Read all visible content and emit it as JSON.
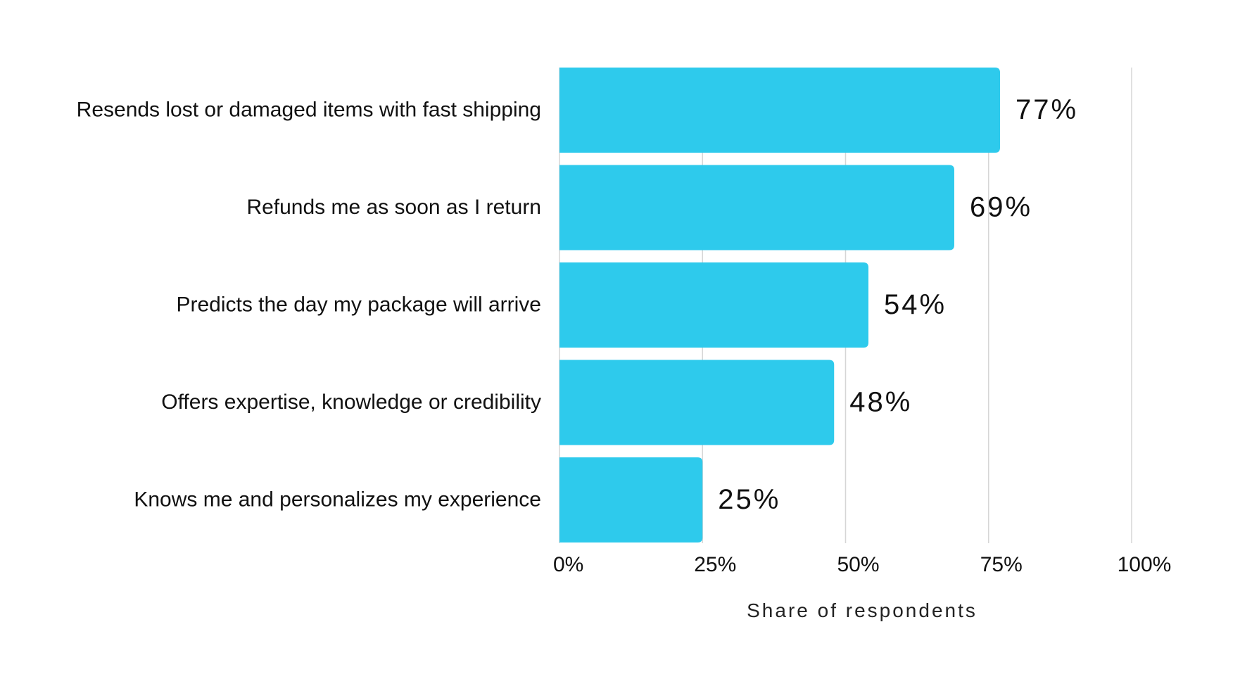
{
  "chart_data": {
    "type": "bar",
    "orientation": "horizontal",
    "categories": [
      "Resends lost or damaged items with fast shipping",
      "Refunds me as soon as I return",
      "Predicts the day my package will arrive",
      "Offers expertise, knowledge or credibility",
      "Knows me and personalizes my experience"
    ],
    "values": [
      77,
      69,
      54,
      48,
      25
    ],
    "value_labels": [
      "77%",
      "69%",
      "54%",
      "48%",
      "25%"
    ],
    "xlabel": "Share of respondents",
    "ylabel": "",
    "xlim": [
      0,
      100
    ],
    "ticks": [
      0,
      25,
      50,
      75,
      100
    ],
    "tick_labels": [
      "0%",
      "25%",
      "50%",
      "75%",
      "100%"
    ],
    "grid": true,
    "colors": {
      "bar": "#2ecaec"
    }
  }
}
